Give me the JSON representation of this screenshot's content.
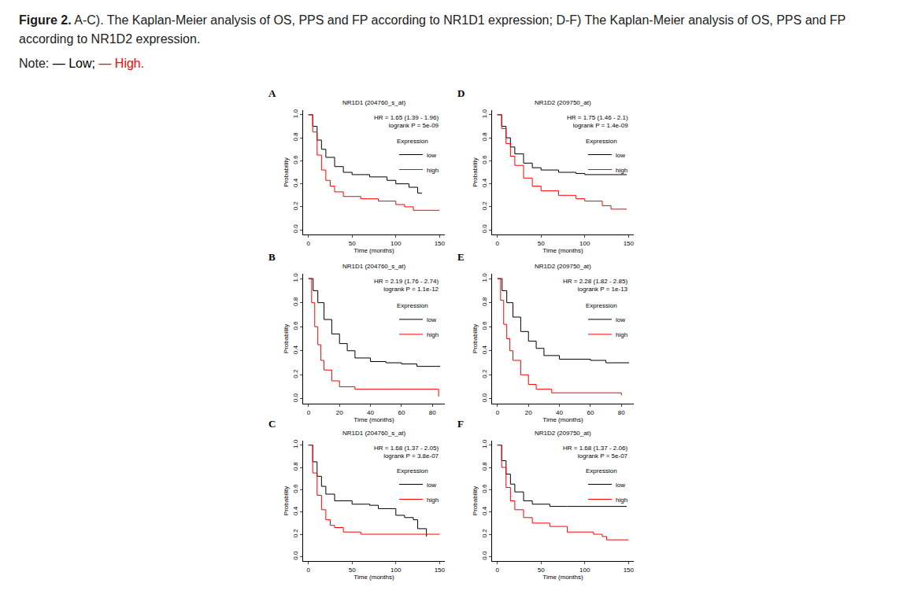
{
  "figure_label": "Figure 2.",
  "caption": "A-C). The Kaplan-Meier analysis of OS, PPS and FP according to NR1D1 expression; D-F) The Kaplan-Meier analysis of OS, PPS and FP according to NR1D2 expression.",
  "note_label": "Note:",
  "note_items": [
    {
      "text": "— Low;",
      "color": "#000000"
    },
    {
      "text": "— High.",
      "color": "#ff0000"
    }
  ],
  "chart_data": [
    {
      "type": "line",
      "panel": "A",
      "title": "NR1D1 (204760_s_at)",
      "annotations": [
        "HR = 1.65 (1.39 - 1.96)",
        "logrank P = 5e-09"
      ],
      "xlabel": "Time (months)",
      "ylabel": "Probability",
      "legend_title": "Expression",
      "xlim": [
        -6,
        156
      ],
      "xticks": [
        0,
        50,
        100,
        150
      ],
      "ylim": [
        -0.04,
        1.04
      ],
      "yticks": [
        {
          "value": 0,
          "label": "0.0"
        },
        {
          "value": 0.2,
          "label": "0.2"
        },
        {
          "value": 0.4,
          "label": "0.4"
        },
        {
          "value": 0.6,
          "label": "0.6"
        },
        {
          "value": 0.8,
          "label": "0.8"
        },
        {
          "value": 1,
          "label": "1.0"
        }
      ],
      "series": [
        {
          "name": "low",
          "color": "#000000",
          "x": [
            0,
            5,
            10,
            15,
            20,
            30,
            40,
            50,
            70,
            90,
            100,
            115,
            125,
            130
          ],
          "values": [
            1,
            0.9,
            0.78,
            0.7,
            0.63,
            0.55,
            0.5,
            0.48,
            0.46,
            0.43,
            0.4,
            0.37,
            0.32,
            0.32
          ]
        },
        {
          "name": "high",
          "color": "#ff0000",
          "x": [
            0,
            5,
            10,
            15,
            20,
            25,
            30,
            40,
            60,
            80,
            100,
            110,
            120,
            150
          ],
          "values": [
            1,
            0.85,
            0.65,
            0.52,
            0.43,
            0.38,
            0.33,
            0.29,
            0.27,
            0.25,
            0.22,
            0.2,
            0.17,
            0.17
          ]
        }
      ]
    },
    {
      "type": "line",
      "panel": "B",
      "title": "NR1D1 (204760_s_at)",
      "annotations": [
        "HR = 2.19 (1.76 - 2.74)",
        "logrank P = 1.1e-12"
      ],
      "xlabel": "Time (months)",
      "ylabel": "Probability",
      "legend_title": "Expression",
      "xlim": [
        -3.5,
        88
      ],
      "xticks": [
        0,
        20,
        40,
        60,
        80
      ],
      "ylim": [
        -0.04,
        1.04
      ],
      "yticks": [
        {
          "value": 0,
          "label": "0.0"
        },
        {
          "value": 0.2,
          "label": "0.2"
        },
        {
          "value": 0.4,
          "label": "0.4"
        },
        {
          "value": 0.6,
          "label": "0.6"
        },
        {
          "value": 0.8,
          "label": "0.8"
        },
        {
          "value": 1,
          "label": "1.0"
        }
      ],
      "series": [
        {
          "name": "low",
          "color": "#000000",
          "x": [
            0,
            3,
            6,
            10,
            15,
            20,
            25,
            30,
            40,
            50,
            60,
            70,
            85
          ],
          "values": [
            1,
            0.9,
            0.8,
            0.66,
            0.54,
            0.46,
            0.4,
            0.34,
            0.31,
            0.3,
            0.29,
            0.27,
            0.27
          ]
        },
        {
          "name": "high",
          "color": "#ff0000",
          "x": [
            0,
            2,
            4,
            6,
            8,
            10,
            15,
            20,
            30,
            60,
            84,
            84
          ],
          "values": [
            1,
            0.8,
            0.6,
            0.45,
            0.32,
            0.24,
            0.15,
            0.1,
            0.08,
            0.08,
            0.08,
            0.02
          ]
        }
      ]
    },
    {
      "type": "line",
      "panel": "C",
      "title": "NR1D1 (204760_s_at)",
      "annotations": [
        "HR = 1.68 (1.37 - 2.05)",
        "logrank P = 3.8e-07"
      ],
      "xlabel": "Time (months)",
      "ylabel": "Probability",
      "legend_title": "Expression",
      "xlim": [
        -6,
        156
      ],
      "xticks": [
        0,
        50,
        100,
        150
      ],
      "ylim": [
        -0.04,
        1.04
      ],
      "yticks": [
        {
          "value": 0,
          "label": "0.0"
        },
        {
          "value": 0.2,
          "label": "0.2"
        },
        {
          "value": 0.4,
          "label": "0.4"
        },
        {
          "value": 0.6,
          "label": "0.6"
        },
        {
          "value": 0.8,
          "label": "0.8"
        },
        {
          "value": 1,
          "label": "1.0"
        }
      ],
      "series": [
        {
          "name": "low",
          "color": "#000000",
          "x": [
            0,
            5,
            10,
            15,
            20,
            30,
            50,
            70,
            80,
            100,
            110,
            120,
            125,
            135
          ],
          "values": [
            1,
            0.85,
            0.72,
            0.63,
            0.56,
            0.5,
            0.47,
            0.46,
            0.43,
            0.37,
            0.35,
            0.33,
            0.25,
            0.18
          ]
        },
        {
          "name": "high",
          "color": "#ff0000",
          "x": [
            0,
            5,
            10,
            15,
            20,
            25,
            30,
            40,
            60,
            150
          ],
          "values": [
            1,
            0.75,
            0.55,
            0.42,
            0.33,
            0.28,
            0.26,
            0.22,
            0.2,
            0.2
          ]
        }
      ]
    },
    {
      "type": "line",
      "panel": "D",
      "title": "NR1D2 (209750_at)",
      "annotations": [
        "HR = 1.75 (1.46 - 2.1)",
        "logrank P = 1.4e-09"
      ],
      "xlabel": "Time (months)",
      "ylabel": "Probability",
      "legend_title": "Expression",
      "xlim": [
        -6,
        156
      ],
      "xticks": [
        0,
        50,
        100,
        150
      ],
      "ylim": [
        -0.04,
        1.04
      ],
      "yticks": [
        {
          "value": 0,
          "label": "0.0"
        },
        {
          "value": 0.2,
          "label": "0.2"
        },
        {
          "value": 0.4,
          "label": "0.4"
        },
        {
          "value": 0.6,
          "label": "0.6"
        },
        {
          "value": 0.8,
          "label": "0.8"
        },
        {
          "value": 1,
          "label": "1.0"
        }
      ],
      "series": [
        {
          "name": "low",
          "color": "#000000",
          "x": [
            0,
            5,
            10,
            15,
            20,
            30,
            40,
            50,
            70,
            90,
            100,
            148
          ],
          "values": [
            1,
            0.9,
            0.8,
            0.72,
            0.66,
            0.58,
            0.54,
            0.52,
            0.5,
            0.49,
            0.48,
            0.48
          ]
        },
        {
          "name": "high",
          "color": "#ff0000",
          "x": [
            0,
            5,
            10,
            15,
            20,
            30,
            40,
            50,
            70,
            90,
            100,
            120,
            130,
            148
          ],
          "values": [
            1,
            0.88,
            0.75,
            0.64,
            0.56,
            0.45,
            0.38,
            0.34,
            0.3,
            0.27,
            0.25,
            0.21,
            0.18,
            0.18
          ]
        }
      ]
    },
    {
      "type": "line",
      "panel": "E",
      "title": "NR1D2 (209750_at)",
      "annotations": [
        "HR = 2.28 (1.82 - 2.85)",
        "logrank P = 1e-13"
      ],
      "xlabel": "Time (months)",
      "ylabel": "Probability",
      "legend_title": "Expression",
      "xlim": [
        -3.5,
        88
      ],
      "xticks": [
        0,
        20,
        40,
        60,
        80
      ],
      "ylim": [
        -0.04,
        1.04
      ],
      "yticks": [
        {
          "value": 0,
          "label": "0.0"
        },
        {
          "value": 0.2,
          "label": "0.2"
        },
        {
          "value": 0.4,
          "label": "0.4"
        },
        {
          "value": 0.6,
          "label": "0.6"
        },
        {
          "value": 0.8,
          "label": "0.8"
        },
        {
          "value": 1,
          "label": "1.0"
        }
      ],
      "series": [
        {
          "name": "low",
          "color": "#000000",
          "x": [
            0,
            3,
            6,
            10,
            15,
            20,
            25,
            30,
            40,
            60,
            70,
            85
          ],
          "values": [
            1,
            0.9,
            0.8,
            0.68,
            0.56,
            0.48,
            0.42,
            0.36,
            0.33,
            0.32,
            0.3,
            0.3
          ]
        },
        {
          "name": "high",
          "color": "#ff0000",
          "x": [
            0,
            2,
            4,
            6,
            8,
            10,
            15,
            20,
            25,
            35,
            80
          ],
          "values": [
            1,
            0.82,
            0.62,
            0.5,
            0.4,
            0.32,
            0.2,
            0.12,
            0.08,
            0.05,
            0.03
          ]
        }
      ]
    },
    {
      "type": "line",
      "panel": "F",
      "title": "NR1D2 (209750_at)",
      "annotations": [
        "HR = 1.68 (1.37 - 2.06)",
        "logrank P = 5e-07"
      ],
      "xlabel": "Time (months)",
      "ylabel": "Probability",
      "legend_title": "Expression",
      "xlim": [
        -6,
        156
      ],
      "xticks": [
        0,
        50,
        100,
        150
      ],
      "ylim": [
        -0.04,
        1.04
      ],
      "yticks": [
        {
          "value": 0,
          "label": "0.0"
        },
        {
          "value": 0.2,
          "label": "0.2"
        },
        {
          "value": 0.4,
          "label": "0.4"
        },
        {
          "value": 0.6,
          "label": "0.6"
        },
        {
          "value": 0.8,
          "label": "0.8"
        },
        {
          "value": 1,
          "label": "1.0"
        }
      ],
      "series": [
        {
          "name": "low",
          "color": "#000000",
          "x": [
            0,
            5,
            10,
            15,
            20,
            30,
            40,
            60,
            80,
            148
          ],
          "values": [
            1,
            0.86,
            0.74,
            0.65,
            0.58,
            0.5,
            0.47,
            0.45,
            0.45,
            0.45
          ]
        },
        {
          "name": "high",
          "color": "#ff0000",
          "x": [
            0,
            5,
            10,
            15,
            20,
            30,
            40,
            60,
            80,
            110,
            120,
            125,
            150
          ],
          "values": [
            1,
            0.8,
            0.62,
            0.5,
            0.42,
            0.35,
            0.3,
            0.27,
            0.22,
            0.2,
            0.18,
            0.15,
            0.15
          ]
        }
      ]
    }
  ]
}
